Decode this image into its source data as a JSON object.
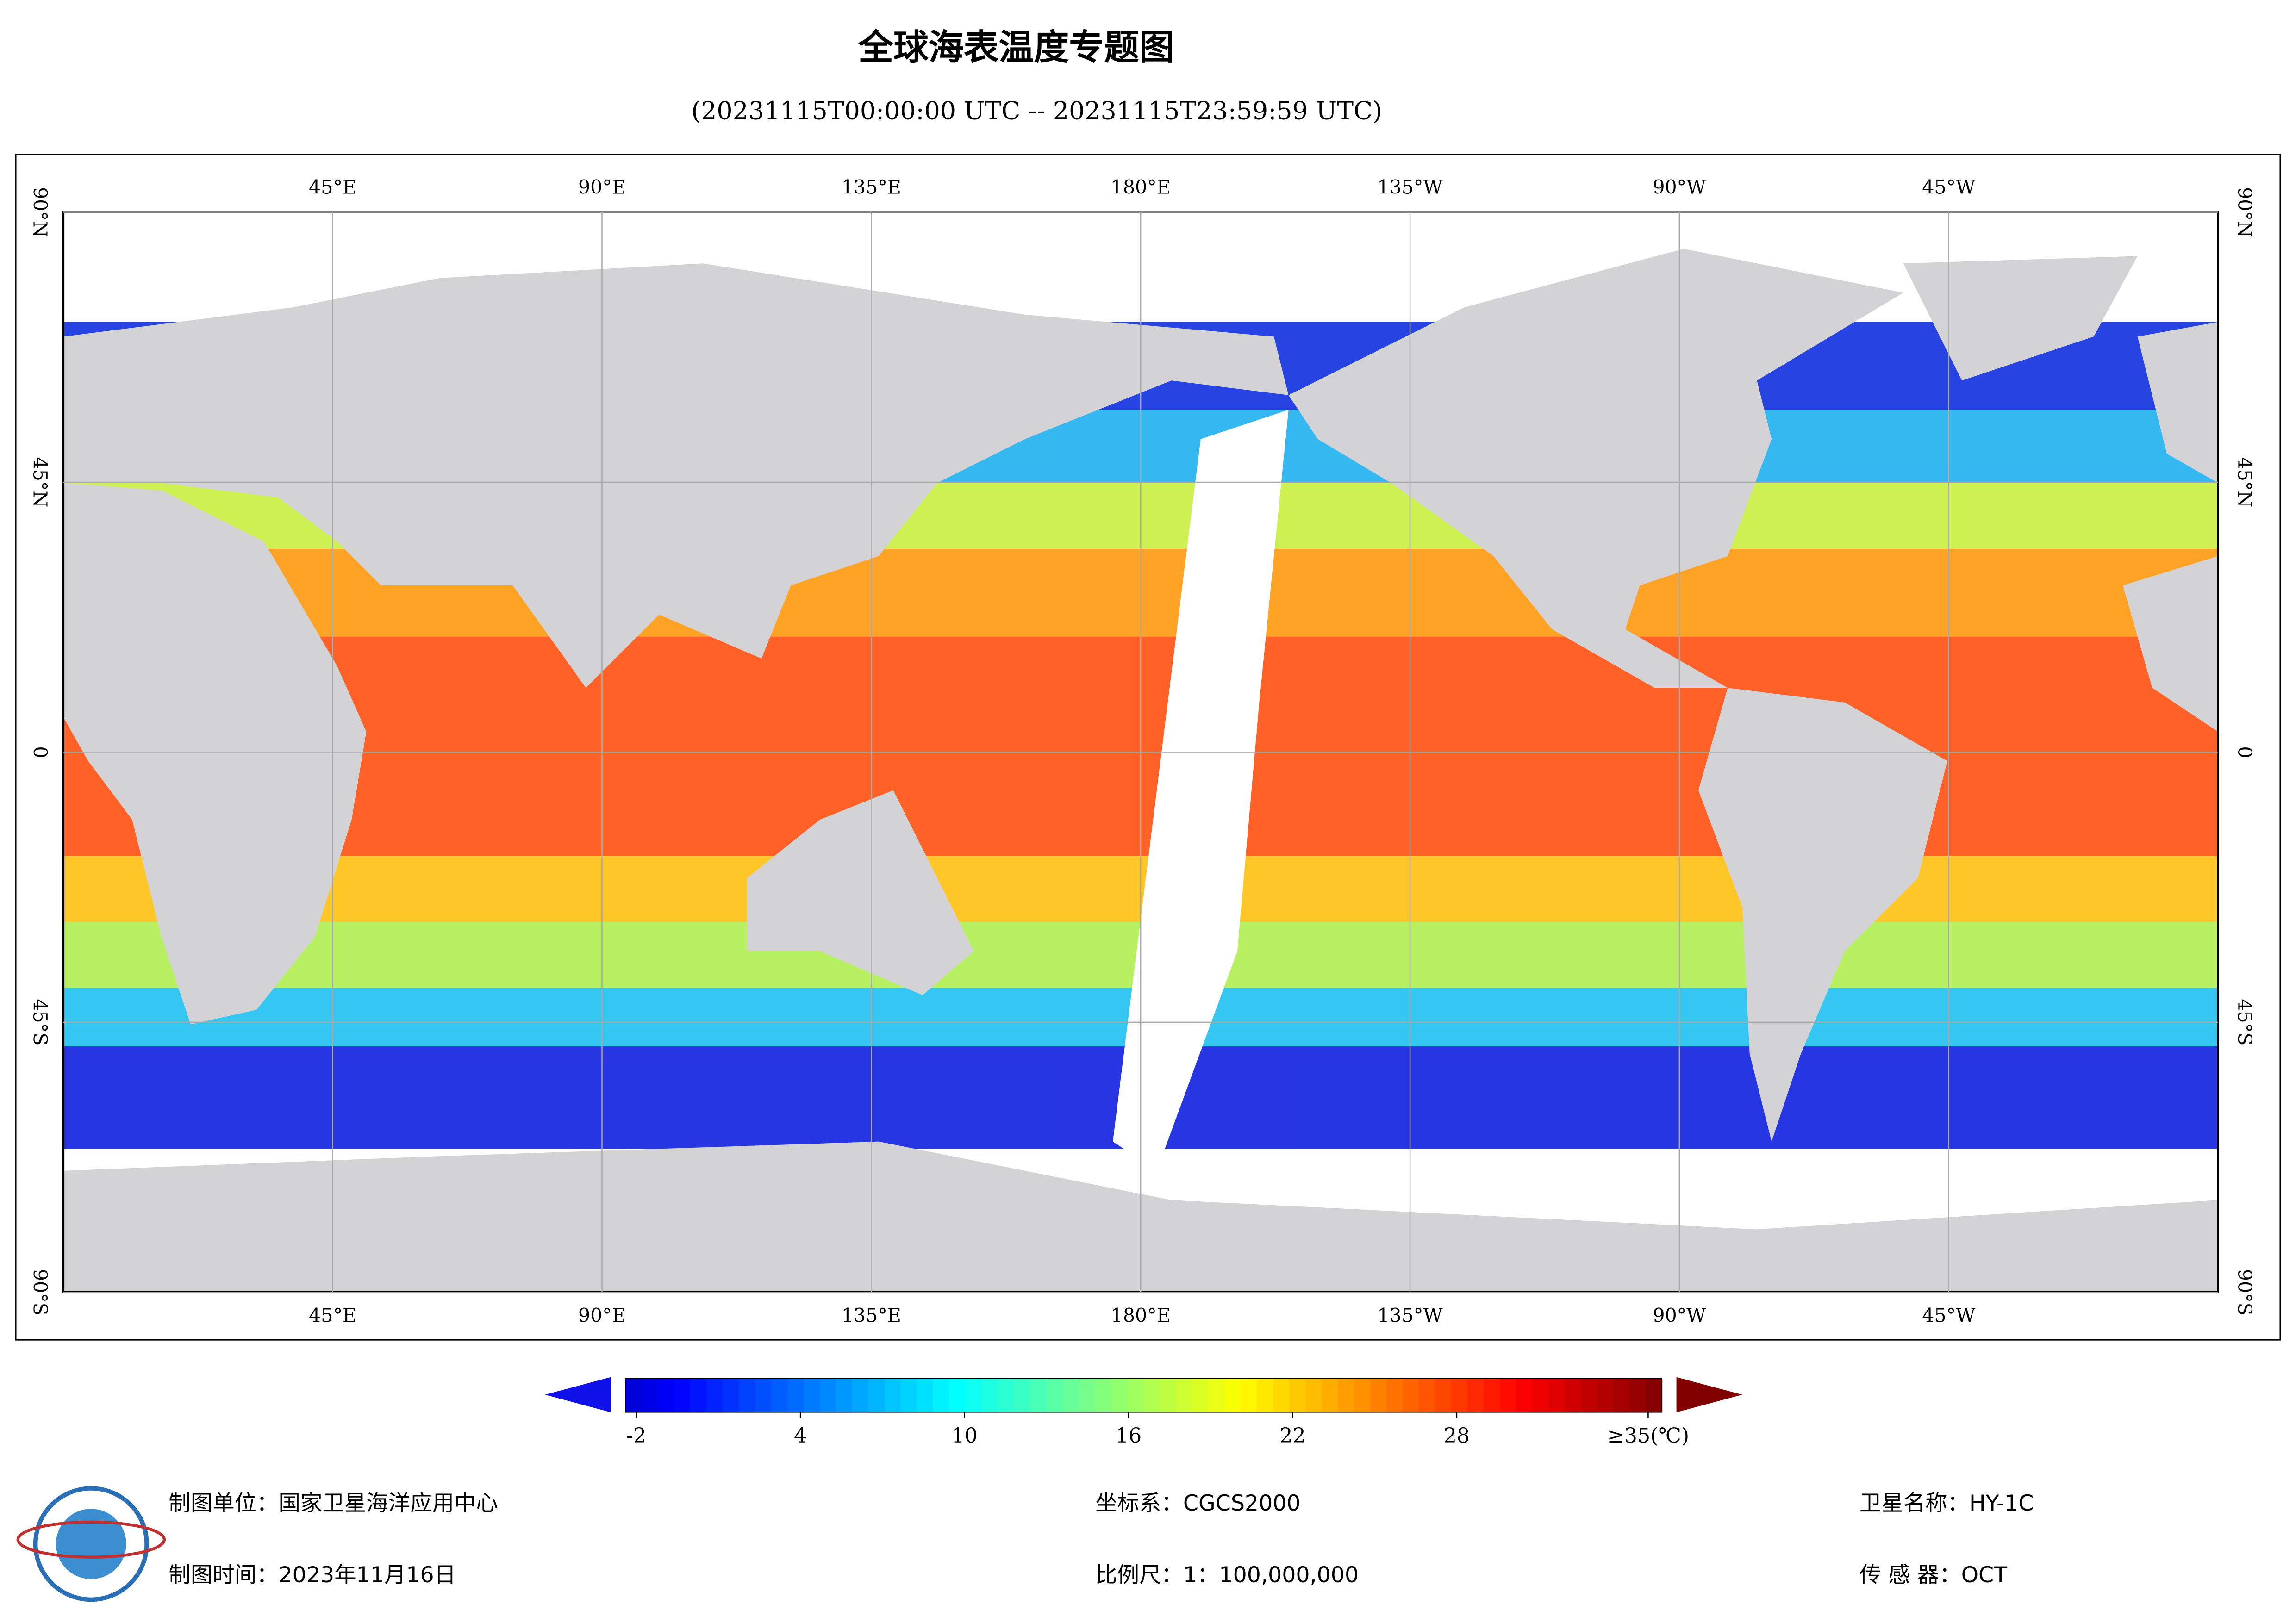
{
  "header": {
    "title": "全球海表温度专题图",
    "subtitle": "(20231115T00:00:00 UTC -- 20231115T23:59:59 UTC)"
  },
  "map": {
    "lonlim": [
      0,
      360
    ],
    "latlim": [
      -90,
      90
    ],
    "lon_ticks": [
      {
        "value": 45,
        "label": "45°E"
      },
      {
        "value": 90,
        "label": "90°E"
      },
      {
        "value": 135,
        "label": "135°E"
      },
      {
        "value": 180,
        "label": "180°E"
      },
      {
        "value": 225,
        "label": "135°W"
      },
      {
        "value": 270,
        "label": "90°W"
      },
      {
        "value": 315,
        "label": "45°W"
      }
    ],
    "lat_ticks": [
      {
        "value": 90,
        "label": "90°N"
      },
      {
        "value": 45,
        "label": "45°N"
      },
      0,
      {
        "value": -45,
        "label": "45°S"
      },
      {
        "value": -90,
        "label": "90°S"
      }
    ],
    "grid": true
  },
  "colorbar": {
    "lim": [
      -2.4,
      35.5
    ],
    "ticks": [
      -2,
      4,
      10,
      16,
      22,
      28,
      {
        "value": 35,
        "label": "≥35(℃)"
      }
    ]
  },
  "footer": {
    "unit": "制图单位：国家卫星海洋应用中心",
    "date": "制图时间：2023年11月16日",
    "crs": "坐标系：CGCS2000",
    "scale": "比例尺：1：100,000,000",
    "satellite": "卫星名称：HY-1C",
    "sensor": "传 感 器：OCT"
  }
}
